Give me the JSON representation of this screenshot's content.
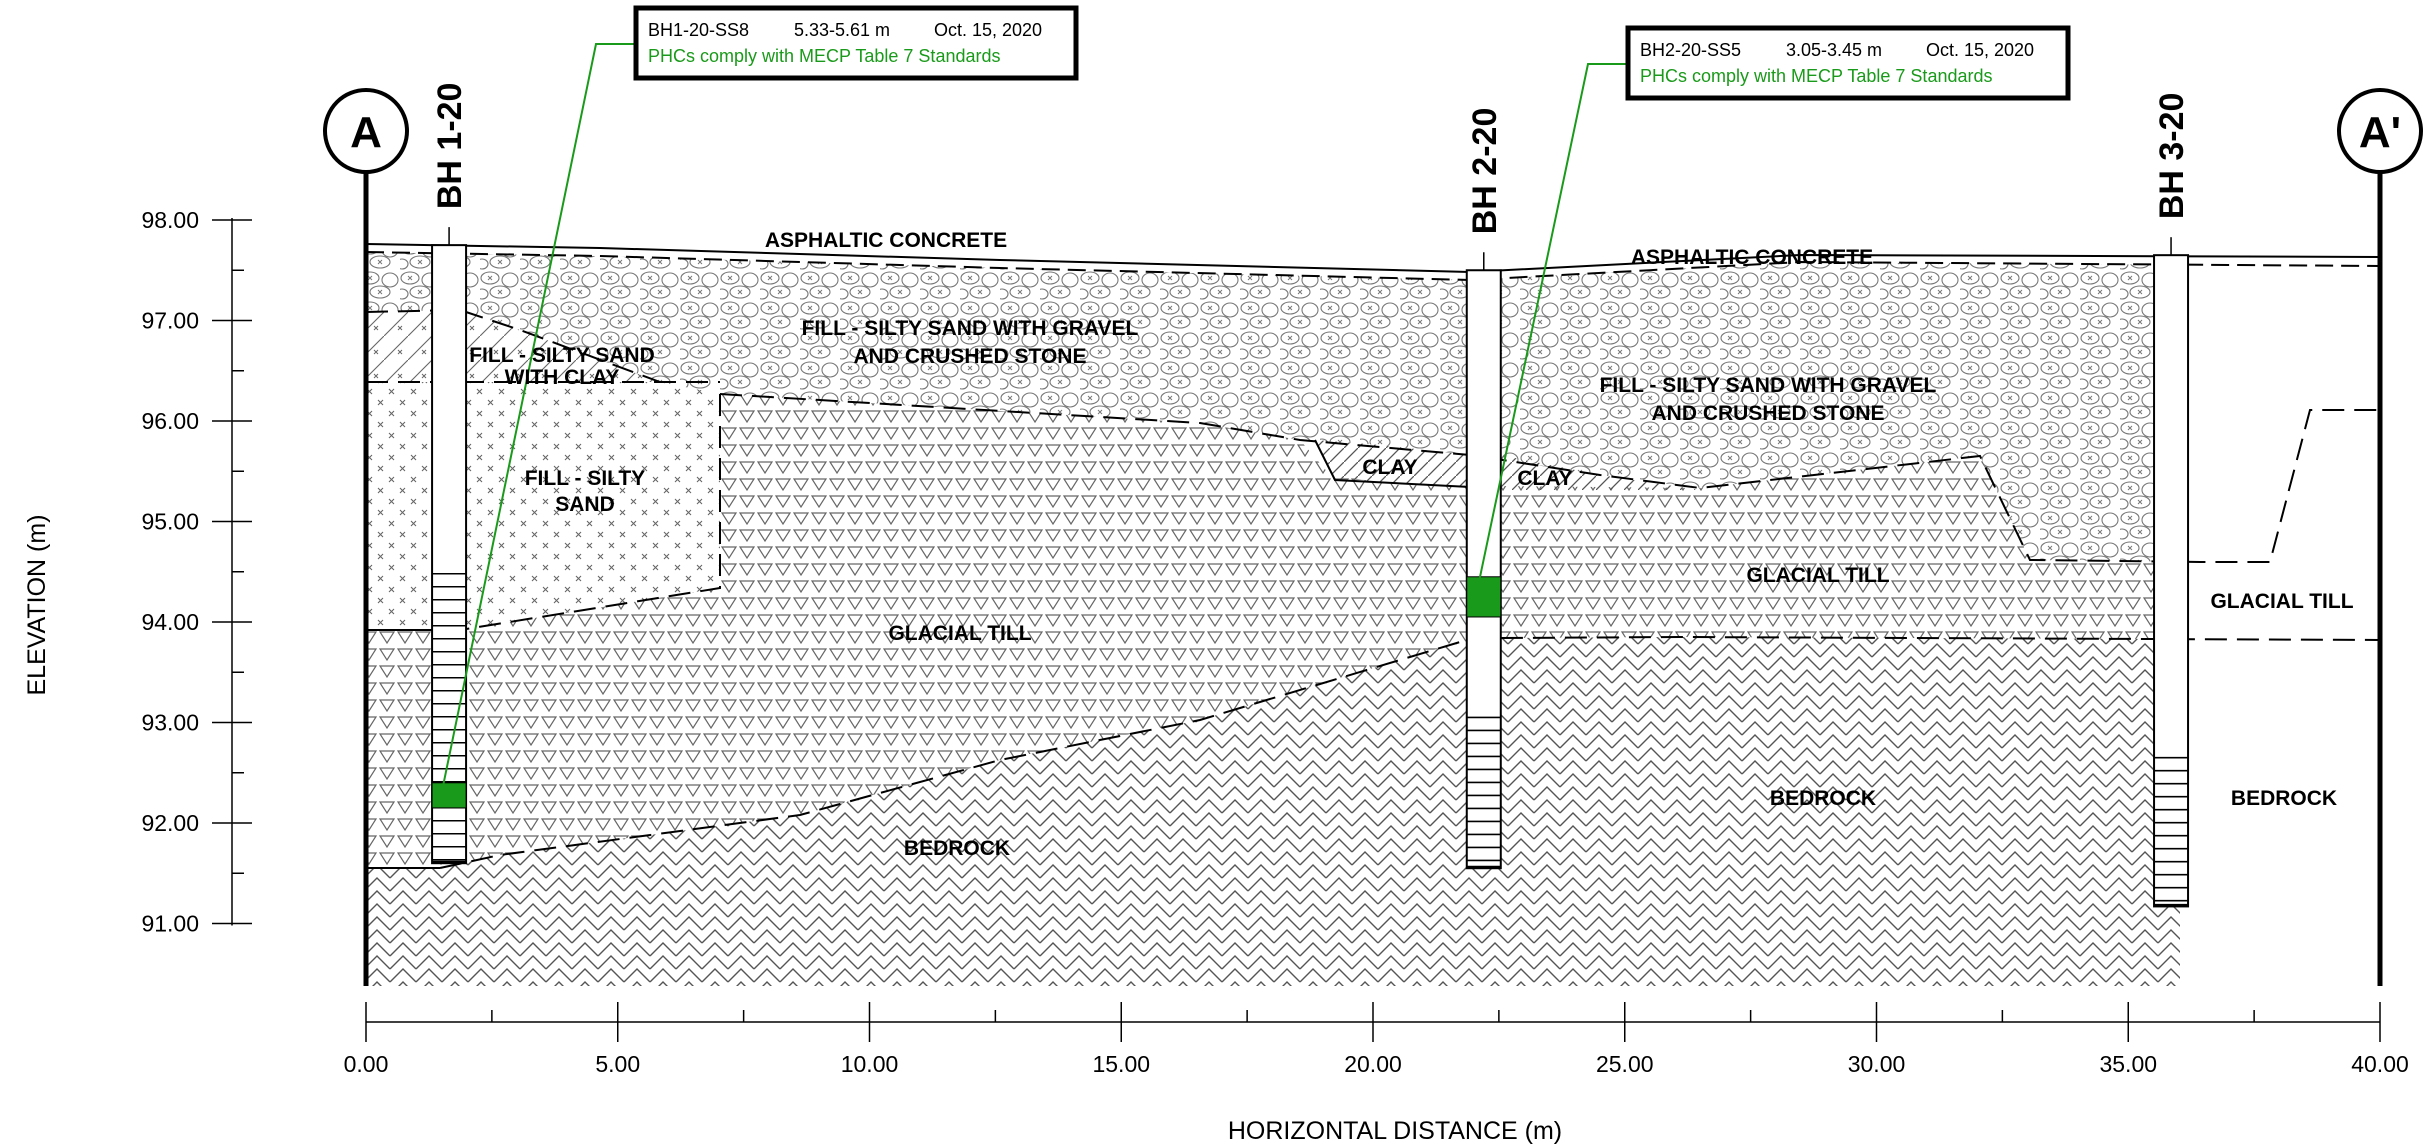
{
  "colors": {
    "line": "#000000",
    "sample_green": "#1a9a1a",
    "note_green": "#1a9a1a",
    "pattern_grey": "#555555"
  },
  "axes": {
    "y_label": "ELEVATION (m)",
    "x_label": "HORIZONTAL DISTANCE (m)",
    "y_ticks": [
      "91.00",
      "92.00",
      "93.00",
      "94.00",
      "95.00",
      "96.00",
      "97.00",
      "98.00"
    ],
    "x_ticks": [
      "0.00",
      "5.00",
      "10.00",
      "15.00",
      "20.00",
      "25.00",
      "30.00",
      "35.00",
      "40.00"
    ],
    "y_range": [
      90.4,
      98.8
    ],
    "x_range": [
      0,
      40
    ]
  },
  "section": {
    "start_label": "A",
    "end_label": "A'"
  },
  "boreholes": [
    {
      "name": "BH 1-20",
      "x": 1.65,
      "top": 97.75,
      "screen_top": 94.48,
      "bottom": 91.6
    },
    {
      "name": "BH 2-20",
      "x": 22.2,
      "top": 97.5,
      "screen_top": 93.05,
      "bottom": 91.55
    },
    {
      "name": "BH 3-20",
      "x": 35.85,
      "top": 97.65,
      "screen_top": 92.65,
      "bottom": 91.17
    }
  ],
  "layers": {
    "asphalt_1": "ASPHALTIC CONCRETE",
    "asphalt_2": "ASPHALTIC CONCRETE",
    "fill_gravel_1": [
      "FILL - SILTY SAND WITH GRAVEL",
      "AND CRUSHED STONE"
    ],
    "fill_gravel_2": [
      "FILL - SILTY SAND WITH GRAVEL",
      "AND CRUSHED STONE"
    ],
    "fill_silty_sand_clay": [
      "FILL - SILTY SAND",
      "WITH CLAY"
    ],
    "fill_silty_sand": [
      "FILL - SILTY",
      "SAND"
    ],
    "clay_1": "CLAY",
    "clay_2": "CLAY",
    "glacial_till_1": "GLACIAL TILL",
    "glacial_till_2": "GLACIAL TILL",
    "glacial_till_3": "GLACIAL TILL",
    "bedrock_1": "BEDROCK",
    "bedrock_2": "BEDROCK",
    "bedrock_3": "BEDROCK"
  },
  "samples": [
    {
      "id": "BH1-20-SS8",
      "depth": "5.33-5.61 m",
      "date": "Oct. 15, 2020",
      "note": "PHCs comply with MECP Table 7 Standards",
      "elev_top": 92.4,
      "elev_bottom": 92.15
    },
    {
      "id": "BH2-20-SS5",
      "depth": "3.05-3.45 m",
      "date": "Oct. 15, 2020",
      "note": "PHCs comply with MECP Table 7 Standards",
      "elev_top": 94.45,
      "elev_bottom": 94.05
    }
  ]
}
